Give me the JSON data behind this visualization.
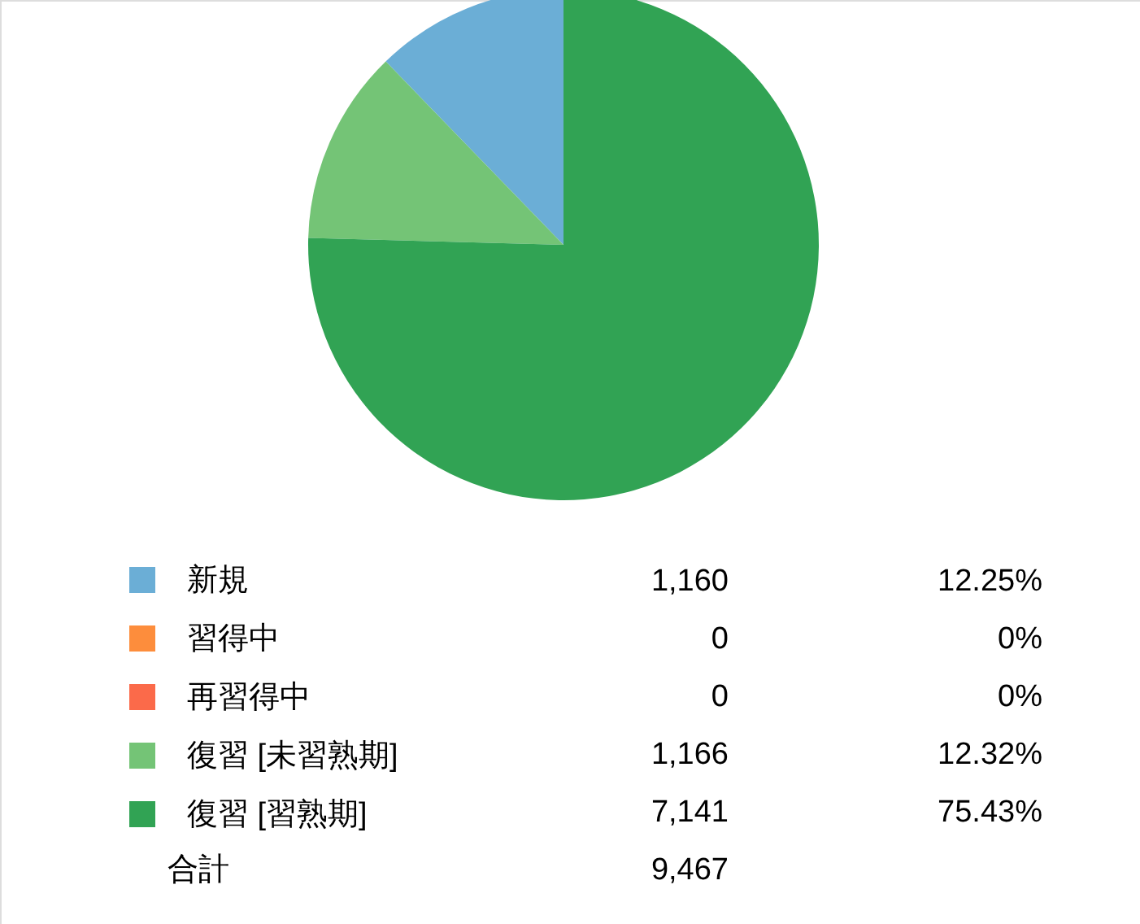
{
  "chart_data": {
    "type": "pie",
    "categories": [
      "新規",
      "習得中",
      "再習得中",
      "復習 [未習熟期]",
      "復習 [習熟期]"
    ],
    "values": [
      1160,
      0,
      0,
      1166,
      7141
    ],
    "colors": [
      "#6baed6",
      "#fd8d3c",
      "#fb6a4a",
      "#74c476",
      "#31a354"
    ],
    "value_labels": [
      "1,160",
      "0",
      "0",
      "1,166",
      "7,141"
    ],
    "annotations": [
      "12.25%",
      "0%",
      "0%",
      "12.32%",
      "75.43%",
      "合計",
      "9,467"
    ],
    "legend": "bottom"
  }
}
